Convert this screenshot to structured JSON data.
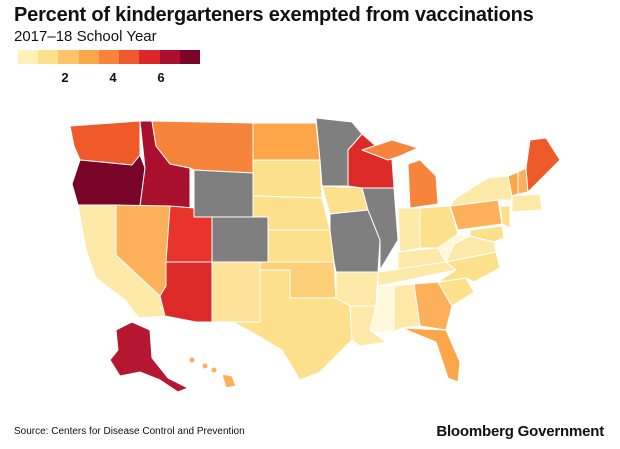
{
  "header": {
    "title": "Percent of kindergarteners exempted from vaccinations",
    "subtitle": "2017–18 School Year"
  },
  "legend": {
    "ticks": [
      "2",
      "4",
      "6"
    ],
    "colors": [
      "#fff1b8",
      "#fde08c",
      "#fdc46a",
      "#fca64a",
      "#f8843a",
      "#ee5a2b",
      "#d9272a",
      "#a8102e",
      "#7a0428"
    ]
  },
  "footer": {
    "source": "Source: Centers for Disease Control and Prevention",
    "brand": "Bloomberg Government"
  },
  "colors": {
    "no_data": "#7f7f7f",
    "border": "#ffffff"
  }
}
